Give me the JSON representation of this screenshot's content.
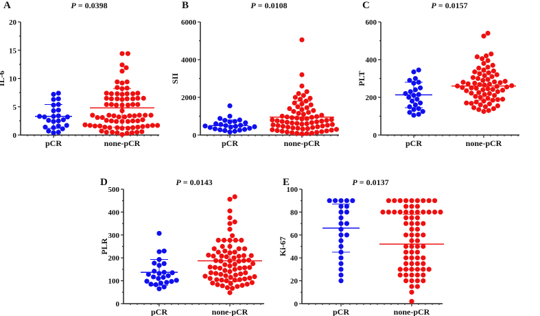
{
  "colors": {
    "pcr": "#1010ee",
    "nonpcr": "#ee1111",
    "axis": "#222222"
  },
  "chart_data": [
    {
      "type": "scatter",
      "panel": "A",
      "title": "P = 0.0398",
      "title_italic": "P",
      "title_rest": " = 0.0398",
      "ylabel": "IL-6",
      "ylim": [
        0,
        20
      ],
      "yticks": [
        0,
        5,
        10,
        15,
        20
      ],
      "categories": [
        "pCR",
        "none-pCR"
      ],
      "summary": {
        "pCR": {
          "mean": 3.3,
          "sd_low": 1.2,
          "sd_high": 5.4
        },
        "none-pCR": {
          "mean": 4.8,
          "sd_low": 1.4,
          "sd_high": 8.2
        }
      },
      "series": [
        {
          "name": "pCR",
          "values": [
            7.2,
            7.4,
            6.3,
            6.4,
            5.3,
            5.4,
            4.3,
            4.4,
            3.3,
            3.2,
            3.3,
            3.4,
            3.2,
            2.5,
            2.7,
            2.4,
            2.6,
            1.3,
            1.4,
            1.7,
            1.6,
            1.1,
            0.4,
            0.5,
            0.7
          ]
        },
        {
          "name": "none-pCR",
          "values": [
            14.4,
            14.4,
            12.4,
            11.9,
            11.3,
            9.4,
            9.2,
            9.4,
            8.3,
            8.4,
            8.2,
            7.3,
            7.3,
            7.4,
            7.3,
            7.3,
            7.2,
            7.4,
            6.5,
            6.4,
            6.5,
            6.4,
            6.4,
            6.3,
            6.5,
            6.4,
            5.4,
            5.3,
            5.4,
            5.3,
            5.4,
            5.3,
            5.4,
            4.3,
            3.5,
            3.5,
            3.4,
            3.5,
            3.4,
            3.5,
            3.4,
            3.5,
            3.1,
            3.2,
            3.1,
            3.2,
            2.7,
            2.5,
            2.4,
            2.5,
            2.4,
            2.5,
            2.6,
            2.4,
            1.7,
            1.6,
            1.7,
            1.6,
            1.7,
            1.6,
            1.8,
            1.5,
            1.4,
            1.3,
            1.4,
            1.3,
            1.2,
            1.3,
            1.2,
            0.5,
            0.5,
            0.4,
            0.5,
            0.4,
            0.6,
            0.7,
            0.3,
            0.1
          ]
        }
      ]
    },
    {
      "type": "scatter",
      "panel": "B",
      "title": "P = 0.0108",
      "title_italic": "P",
      "title_rest": " = 0.0108",
      "ylabel": "SII",
      "ylim": [
        0,
        6000
      ],
      "yticks": [
        0,
        2000,
        4000,
        6000
      ],
      "categories": [
        "pCR",
        "none-pCR"
      ],
      "summary": {
        "pCR": {
          "mean": 500,
          "sd_low": 200,
          "sd_high": 800
        },
        "none-pCR": {
          "mean": 950,
          "sd_low": 100,
          "sd_high": 1800
        }
      },
      "series": [
        {
          "name": "pCR",
          "values": [
            1550,
            1000,
            880,
            800,
            780,
            720,
            700,
            650,
            600,
            560,
            520,
            500,
            480,
            460,
            440,
            420,
            400,
            360,
            330,
            300,
            280,
            260,
            240,
            200,
            160
          ]
        },
        {
          "name": "none-pCR",
          "values": [
            5050,
            3200,
            2600,
            2300,
            2200,
            2100,
            2000,
            1950,
            1900,
            1800,
            1700,
            1650,
            1600,
            1500,
            1450,
            1400,
            1350,
            1300,
            1250,
            1200,
            1150,
            1100,
            1050,
            1000,
            980,
            960,
            940,
            920,
            900,
            870,
            850,
            820,
            800,
            780,
            760,
            740,
            720,
            700,
            680,
            660,
            640,
            620,
            600,
            580,
            560,
            540,
            520,
            500,
            480,
            460,
            440,
            420,
            400,
            380,
            360,
            340,
            320,
            300,
            280,
            260,
            240,
            220,
            200,
            180,
            160,
            140,
            120,
            100,
            90,
            80,
            60
          ]
        }
      ]
    },
    {
      "type": "scatter",
      "panel": "C",
      "title": "P = 0.0157",
      "title_italic": "P",
      "title_rest": " = 0.0157",
      "ylabel": "PLT",
      "ylim": [
        0,
        600
      ],
      "yticks": [
        0,
        200,
        400,
        600
      ],
      "categories": [
        "pCR",
        "none-pCR"
      ],
      "summary": {
        "pCR": {
          "mean": 213,
          "sd_low": 145,
          "sd_high": 280
        },
        "none-pCR": {
          "mean": 260,
          "sd_low": 185,
          "sd_high": 335
        }
      },
      "series": [
        {
          "name": "pCR",
          "values": [
            345,
            335,
            300,
            290,
            280,
            275,
            250,
            240,
            230,
            220,
            215,
            210,
            200,
            190,
            180,
            170,
            160,
            150,
            140,
            135,
            125,
            120,
            110,
            105
          ]
        },
        {
          "name": "none-pCR",
          "values": [
            540,
            525,
            430,
            420,
            415,
            405,
            395,
            380,
            370,
            360,
            355,
            345,
            340,
            335,
            330,
            325,
            320,
            315,
            310,
            305,
            300,
            295,
            290,
            285,
            282,
            280,
            278,
            275,
            272,
            270,
            268,
            265,
            262,
            260,
            258,
            255,
            252,
            250,
            248,
            245,
            242,
            240,
            238,
            235,
            230,
            225,
            222,
            220,
            215,
            210,
            205,
            200,
            195,
            190,
            188,
            185,
            180,
            175,
            170,
            168,
            165,
            160,
            155,
            150,
            145,
            140,
            135,
            130,
            125
          ]
        }
      ]
    },
    {
      "type": "scatter",
      "panel": "D",
      "title": "P = 0.0143",
      "title_italic": "P",
      "title_rest": " = 0.0143",
      "ylabel": "PLR",
      "ylim": [
        0,
        500
      ],
      "yticks": [
        0,
        100,
        200,
        300,
        400,
        500
      ],
      "categories": [
        "pCR",
        "none-pCR"
      ],
      "summary": {
        "pCR": {
          "mean": 137,
          "sd_low": 80,
          "sd_high": 193
        },
        "none-pCR": {
          "mean": 187,
          "sd_low": 97,
          "sd_high": 277
        }
      },
      "series": [
        {
          "name": "pCR",
          "values": [
            307,
            230,
            227,
            193,
            177,
            175,
            167,
            142,
            137,
            135,
            132,
            128,
            122,
            117,
            115,
            110,
            102,
            98,
            97,
            93,
            90,
            85,
            83,
            73,
            65
          ]
        },
        {
          "name": "none-pCR",
          "values": [
            467,
            456,
            405,
            375,
            357,
            350,
            325,
            297,
            277,
            277,
            277,
            277,
            277,
            250,
            250,
            240,
            240,
            240,
            230,
            225,
            225,
            222,
            212,
            210,
            210,
            208,
            208,
            207,
            205,
            200,
            190,
            188,
            188,
            187,
            186,
            185,
            175,
            172,
            170,
            165,
            160,
            158,
            158,
            157,
            155,
            155,
            150,
            145,
            140,
            135,
            135,
            132,
            130,
            128,
            125,
            122,
            120,
            118,
            115,
            112,
            110,
            108,
            105,
            105,
            103,
            103,
            100,
            92,
            90,
            88,
            85,
            83,
            80,
            78,
            75,
            70,
            67,
            48
          ]
        }
      ]
    },
    {
      "type": "scatter",
      "panel": "E",
      "title": "P = 0.0137",
      "title_italic": "P",
      "title_rest": " = 0.0137",
      "ylabel": "Ki-67",
      "ylim": [
        0,
        100
      ],
      "yticks": [
        0,
        20,
        40,
        60,
        80,
        100
      ],
      "categories": [
        "pCR",
        "none-pCR"
      ],
      "summary": {
        "pCR": {
          "mean": 66,
          "sd_low": 45,
          "sd_high": 87
        },
        "none-pCR": {
          "mean": 52,
          "sd_low": 30,
          "sd_high": 78
        }
      },
      "series": [
        {
          "name": "pCR",
          "values": [
            90,
            90,
            90,
            90,
            90,
            85,
            85,
            80,
            80,
            75,
            70,
            70,
            65,
            60,
            60,
            55,
            50,
            45,
            40,
            35,
            30,
            25,
            20
          ]
        },
        {
          "name": "none-pCR",
          "values": [
            90,
            90,
            90,
            90,
            90,
            90,
            90,
            90,
            90,
            85,
            85,
            85,
            80,
            80,
            80,
            80,
            80,
            80,
            80,
            80,
            80,
            80,
            80,
            75,
            75,
            75,
            70,
            70,
            70,
            70,
            65,
            65,
            60,
            60,
            60,
            60,
            55,
            55,
            50,
            50,
            50,
            50,
            45,
            45,
            45,
            40,
            40,
            40,
            40,
            35,
            35,
            35,
            35,
            30,
            30,
            30,
            30,
            30,
            30,
            25,
            25,
            25,
            25,
            25,
            20,
            20,
            20,
            20,
            15,
            15,
            10,
            2
          ]
        }
      ]
    }
  ]
}
